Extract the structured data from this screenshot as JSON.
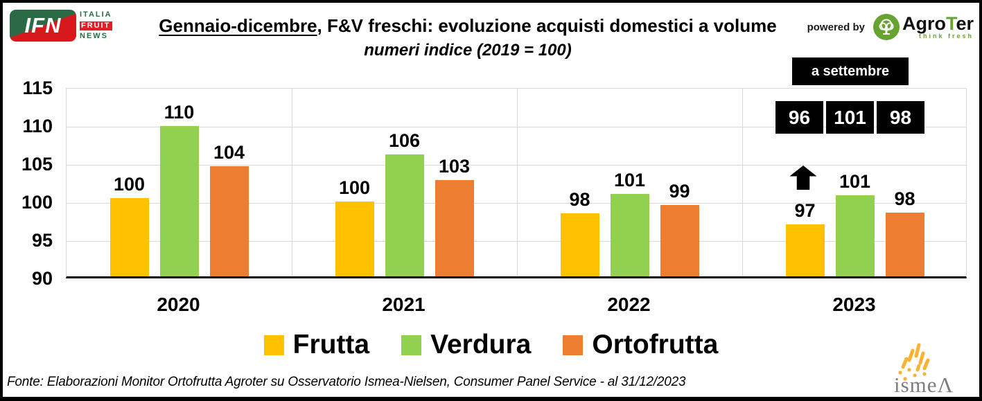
{
  "header": {
    "ifn_logo": {
      "acronym": "IFN",
      "word1": "ITALIA",
      "word2": "FRUIT",
      "word3": "NEWS"
    },
    "title_underlined": "Gennaio-dicembre",
    "title_rest": ", F&V freschi: evoluzione acquisti domestici a volume",
    "subtitle": "numeri indice (2019 = 100)",
    "powered_by": "powered by",
    "agroter_logo": {
      "part_agro": "Agro",
      "part_t": "T",
      "part_er": "er",
      "tagline": "think fresh"
    }
  },
  "callout": {
    "label": "a settembre",
    "values": [
      "96",
      "101",
      "98"
    ]
  },
  "chart_data": {
    "type": "bar",
    "title": "Gennaio-dicembre, F&V freschi: evoluzione acquisti domestici a volume",
    "subtitle": "numeri indice (2019 = 100)",
    "categories": [
      "2020",
      "2021",
      "2022",
      "2023"
    ],
    "series": [
      {
        "name": "Frutta",
        "color": "#FFC000",
        "values": [
          100,
          100,
          98,
          97
        ],
        "drawn_values": [
          100.3,
          99.8,
          98.3,
          96.8
        ]
      },
      {
        "name": "Verdura",
        "color": "#92D050",
        "values": [
          110,
          106,
          101,
          101
        ],
        "drawn_values": [
          109.7,
          106.0,
          100.8,
          100.6
        ]
      },
      {
        "name": "Ortofrutta",
        "color": "#ED7D31",
        "values": [
          104,
          103,
          99,
          98
        ],
        "drawn_values": [
          104.5,
          102.6,
          99.4,
          98.4
        ]
      }
    ],
    "ylim": [
      90,
      115
    ],
    "yticks": [
      115,
      110,
      105,
      100,
      95,
      90
    ],
    "grid": true,
    "legend_position": "bottom",
    "annotations": {
      "arrow_up": {
        "series": "Frutta",
        "category": "2023"
      },
      "september_callout": {
        "label": "a settembre",
        "values": [
          "96",
          "101",
          "98"
        ]
      }
    }
  },
  "footer": {
    "source": "Fonte: Elaborazioni Monitor Ortofrutta Agroter su Osservatorio Ismea-Nielsen, Consumer Panel Service - al 31/12/2023"
  },
  "ismea_logo": {
    "text": "ismeΛ"
  }
}
